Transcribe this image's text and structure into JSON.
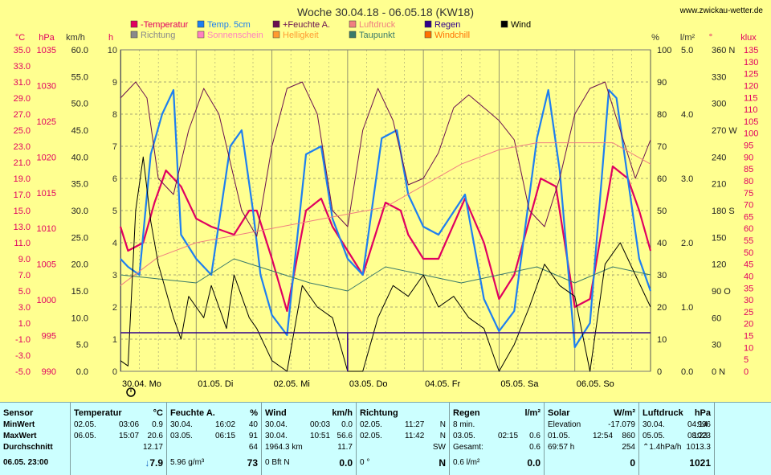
{
  "title": "Woche 30.04.18 - 06.05.18 (KW18)",
  "site": "www.zwickau-wetter.de",
  "colors": {
    "background": "#ffff90",
    "temperature": "#e00060",
    "soil_temp": "#1e7ff0",
    "feuchte": "#6a1050",
    "luftdruck": "#f08080",
    "regen": "#30008a",
    "wind": "#000000",
    "richtung": "#8a8a8a",
    "sonnenschein": "#ff80c0",
    "helligkeit": "#ff9a30",
    "taupunkt": "#3a7a6a",
    "windchill": "#ff7000",
    "grid": "#8a8a6a"
  },
  "legend": [
    {
      "label": "-Temperatur",
      "color": "#e00060"
    },
    {
      "label": "Temp. 5cm",
      "color": "#1e7ff0"
    },
    {
      "label": "+Feuchte A.",
      "color": "#6a1050"
    },
    {
      "label": "Luftdruck",
      "color": "#f08080"
    },
    {
      "label": "Regen",
      "color": "#30008a"
    },
    {
      "label": "Wind",
      "color": "#000000"
    },
    {
      "label": "Richtung",
      "color": "#8a8a8a"
    },
    {
      "label": "Sonnenschein",
      "color": "#ff80c0"
    },
    {
      "label": "Helligkeit",
      "color": "#ff9a30"
    },
    {
      "label": "Taupunkt",
      "color": "#3a7a6a"
    },
    {
      "label": "Windchill",
      "color": "#ff7000"
    }
  ],
  "axis_units": {
    "temp": "°C",
    "pressure": "hPa",
    "wind": "km/h",
    "hours": "h",
    "percent": "%",
    "rain": "l/m²",
    "degree": "°",
    "lux": "klux"
  },
  "chart_data": {
    "type": "line",
    "title": "Woche 30.04.18 - 06.05.18 (KW18)",
    "x_days": [
      "30.04.",
      "01.05.",
      "02.05.",
      "03.05.",
      "04.05.",
      "05.05.",
      "06.05."
    ],
    "x_weekdays": [
      "Mo",
      "Di",
      "Mi",
      "Do",
      "Fr",
      "Sa",
      "So"
    ],
    "axes": {
      "temp_c": {
        "min": -5,
        "max": 35,
        "ticks": [
          "35.0",
          "33.0",
          "31.0",
          "29.0",
          "27.0",
          "25.0",
          "23.0",
          "21.0",
          "19.0",
          "17.0",
          "15.0",
          "13.0",
          "11.0",
          "9.0",
          "7.0",
          "5.0",
          "3.0",
          "1.0",
          "-1.0",
          "-3.0",
          "-5.0"
        ]
      },
      "pressure_hpa": {
        "min": 990,
        "max": 1035,
        "ticks": [
          "1035",
          "1030",
          "1025",
          "1020",
          "1015",
          "1010",
          "1005",
          "1000",
          "995",
          "990"
        ]
      },
      "wind_kmh": {
        "min": 0,
        "max": 60,
        "ticks": [
          "60.0",
          "55.0",
          "50.0",
          "45.0",
          "40.0",
          "35.0",
          "30.0",
          "25.0",
          "20.0",
          "15.0",
          "10.0",
          "5.0",
          "0.0"
        ]
      },
      "hours_h": {
        "min": 0,
        "max": 10,
        "ticks": [
          "10",
          "9",
          "8",
          "7",
          "6",
          "5",
          "4",
          "3",
          "2",
          "1",
          "0"
        ]
      },
      "percent": {
        "min": 0,
        "max": 100,
        "ticks": [
          "100",
          "90",
          "80",
          "70",
          "60",
          "50",
          "40",
          "30",
          "20",
          "10",
          "0"
        ]
      },
      "rain_lm2": {
        "min": 0,
        "max": 5,
        "ticks": [
          "5.0",
          "4.0",
          "3.0",
          "2.0",
          "1.0",
          "0.0"
        ]
      },
      "direction_deg": {
        "min": 0,
        "max": 360,
        "ticks": [
          "360 N",
          "330",
          "300",
          "270 W",
          "240",
          "210",
          "180 S",
          "150",
          "120",
          "90 O",
          "60",
          "30",
          "0 N"
        ]
      },
      "lux_klux": {
        "min": 0,
        "max": 135,
        "ticks": [
          "135",
          "130",
          "125",
          "120",
          "115",
          "110",
          "105",
          "100",
          "95",
          "90",
          "85",
          "80",
          "75",
          "70",
          "65",
          "60",
          "55",
          "50",
          "45",
          "40",
          "35",
          "30",
          "25",
          "20",
          "15",
          "10",
          "5",
          "0"
        ]
      }
    },
    "series": [
      {
        "name": "-Temperatur",
        "axis": "temp_c",
        "x_day": [
          0,
          0.1,
          0.3,
          0.45,
          0.6,
          0.8,
          1.0,
          1.2,
          1.5,
          1.7,
          1.8,
          2.0,
          2.2,
          2.45,
          2.65,
          2.8,
          3.0,
          3.2,
          3.5,
          3.7,
          3.8,
          4.0,
          4.2,
          4.55,
          4.8,
          5.0,
          5.2,
          5.55,
          5.75,
          5.85,
          6.0,
          6.2,
          6.5,
          6.7,
          6.85,
          7.0
        ],
        "y": [
          13,
          10,
          11,
          16,
          20,
          18,
          14,
          13,
          12,
          15,
          15,
          9,
          2.5,
          15,
          16.5,
          13,
          10,
          7,
          16,
          15,
          12,
          9,
          9,
          16.5,
          11,
          4,
          7,
          19,
          18,
          12,
          3,
          4,
          20.5,
          19,
          15,
          10
        ]
      },
      {
        "name": "Temp. 5cm",
        "axis": "temp_c",
        "x_day": [
          0,
          0.1,
          0.25,
          0.4,
          0.55,
          0.7,
          0.8,
          1.0,
          1.2,
          1.45,
          1.6,
          1.75,
          1.85,
          2.0,
          2.2,
          2.45,
          2.65,
          2.8,
          3.0,
          3.2,
          3.45,
          3.65,
          3.8,
          4.0,
          4.2,
          4.55,
          4.8,
          5.0,
          5.2,
          5.5,
          5.65,
          5.8,
          6.0,
          6.2,
          6.45,
          6.55,
          6.7,
          6.85,
          7.0
        ],
        "y": [
          9,
          8,
          7,
          22,
          27,
          30,
          12,
          9,
          7,
          23,
          25,
          15,
          7,
          2,
          -0.5,
          22,
          23,
          14,
          9,
          7,
          24,
          25,
          17,
          13,
          12,
          17,
          4,
          0,
          2.5,
          24,
          30,
          20,
          -2,
          1,
          30,
          29,
          19,
          9,
          5
        ]
      },
      {
        "name": "+Feuchte A.",
        "axis": "percent",
        "x_day": [
          0,
          0.2,
          0.35,
          0.5,
          0.7,
          0.9,
          1.1,
          1.3,
          1.6,
          1.8,
          2.0,
          2.2,
          2.4,
          2.6,
          2.8,
          3.0,
          3.2,
          3.4,
          3.6,
          3.8,
          4.0,
          4.2,
          4.4,
          4.6,
          4.8,
          5.0,
          5.2,
          5.4,
          5.6,
          5.8,
          6.0,
          6.2,
          6.4,
          6.6,
          6.8,
          7.0
        ],
        "y": [
          85,
          90,
          85,
          60,
          55,
          75,
          88,
          80,
          50,
          42,
          70,
          88,
          90,
          80,
          50,
          45,
          75,
          88,
          78,
          58,
          60,
          68,
          82,
          86,
          82,
          78,
          72,
          50,
          45,
          60,
          80,
          88,
          90,
          75,
          60,
          72
        ]
      },
      {
        "name": "Luftdruck",
        "axis": "pressure_hpa",
        "x_day": [
          0,
          0.5,
          1.0,
          1.5,
          2.0,
          2.5,
          3.0,
          3.5,
          4.0,
          4.5,
          5.0,
          5.5,
          6.0,
          6.5,
          7.0
        ],
        "y": [
          1002,
          1006,
          1008,
          1009,
          1010,
          1011,
          1012,
          1013,
          1016,
          1019,
          1021,
          1022,
          1022,
          1022,
          1019
        ]
      },
      {
        "name": "Taupunkt",
        "axis": "temp_c",
        "x_day": [
          0,
          0.5,
          1.0,
          1.5,
          2.0,
          2.5,
          3.0,
          3.5,
          4.0,
          4.5,
          5.0,
          5.5,
          6.0,
          6.5,
          7.0
        ],
        "y": [
          7,
          6.5,
          6,
          9,
          7.5,
          6,
          5,
          8,
          7,
          6,
          7,
          8,
          6,
          8,
          7
        ]
      },
      {
        "name": "Wind",
        "axis": "wind_kmh",
        "x_day": [
          0,
          0.1,
          0.2,
          0.3,
          0.4,
          0.5,
          0.6,
          0.7,
          0.8,
          0.9,
          1.0,
          1.1,
          1.2,
          1.3,
          1.4,
          1.5,
          1.6,
          1.7,
          1.8,
          2.0,
          2.2,
          2.4,
          2.6,
          2.8,
          3.0,
          3.2,
          3.4,
          3.6,
          3.8,
          4.0,
          4.2,
          4.4,
          4.6,
          4.8,
          5.0,
          5.2,
          5.4,
          5.6,
          5.8,
          6.0,
          6.2,
          6.4,
          6.6,
          6.8,
          7.0
        ],
        "y": [
          2,
          1,
          30,
          40,
          28,
          20,
          15,
          10,
          6,
          14,
          12,
          10,
          16,
          12,
          8,
          18,
          14,
          10,
          8,
          2,
          0,
          16,
          12,
          10,
          0,
          0,
          10,
          16,
          14,
          18,
          12,
          14,
          10,
          8,
          0,
          5,
          12,
          20,
          16,
          14,
          0,
          20,
          24,
          18,
          12
        ]
      }
    ],
    "rain_bars": {
      "axis": "rain_lm2",
      "note": "Regen als Stufenlinie",
      "x_day": [
        0,
        3.0,
        3.0,
        7.0
      ],
      "y": [
        0.6,
        0.6,
        0.6,
        0.6
      ]
    }
  },
  "stats": {
    "sensor": {
      "header": "Sensor",
      "rows": [
        "MinWert",
        "MaxWert",
        "Durchschnitt",
        "06.05. 23:00"
      ]
    },
    "temperatur": {
      "header": "Temperatur",
      "unit": "°C",
      "rows": [
        [
          "02.05.",
          "03:06",
          "0.9"
        ],
        [
          "06.05.",
          "15:07",
          "20.6"
        ],
        [
          "",
          "",
          "12.17"
        ]
      ],
      "current_arrow": "↓",
      "current": "7.9"
    },
    "feuchte": {
      "header": "Feuchte A.",
      "unit": "%",
      "rows": [
        [
          "30.04.",
          "16:02",
          "40"
        ],
        [
          "03.05.",
          "06:15",
          "91"
        ],
        [
          "",
          "",
          "64"
        ]
      ],
      "current_label": "5.96 g/m³",
      "current": "73"
    },
    "wind": {
      "header": "Wind",
      "unit": "km/h",
      "rows": [
        [
          "30.04.",
          "00:03",
          "0.0"
        ],
        [
          "30.04.",
          "10:51",
          "56.6"
        ],
        [
          "1964.3 km",
          "",
          "11.7"
        ]
      ],
      "current_label": "0 Bft N",
      "current": "0.0"
    },
    "richtung": {
      "header": "Richtung",
      "rows": [
        [
          "02.05.",
          "11:27",
          "N"
        ],
        [
          "02.05.",
          "11:42",
          "N"
        ],
        [
          "",
          "",
          "SW"
        ]
      ],
      "current_label": "0 °",
      "current": "N"
    },
    "regen": {
      "header": "Regen",
      "unit": "l/m²",
      "rows": [
        [
          "8 min.",
          "",
          ""
        ],
        [
          "03.05.",
          "02:15",
          "0.6"
        ],
        [
          "Gesamt:",
          "",
          "0.6"
        ]
      ],
      "current_label": "0.6 l/m²",
      "current": "0.0"
    },
    "solar": {
      "header": "Solar",
      "unit": "W/m²",
      "rows": [
        [
          "Elevation",
          "",
          "-17.079"
        ],
        [
          "01.05.",
          "12:54",
          "860"
        ],
        [
          "69:57 h",
          "",
          "254"
        ]
      ],
      "current": "0"
    },
    "luftdruck": {
      "header": "Luftdruck",
      "unit": "hPa",
      "rows": [
        [
          "30.04.",
          "04:14",
          "996"
        ],
        [
          "05.05.",
          "08:23",
          "1023"
        ],
        [
          "⌃1.4hPa/h",
          "",
          "1013.3"
        ]
      ],
      "current": "1021"
    }
  }
}
